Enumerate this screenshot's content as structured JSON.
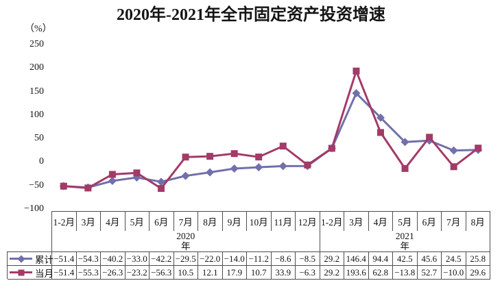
{
  "header": {
    "title": "2020年-2021年全市固定资产投资增速",
    "unit_label": "（%）"
  },
  "colors": {
    "border": "#4d4d4d",
    "text": "#141414",
    "cumulative_series": "#7170AB",
    "monthly_series": "#A33A68"
  },
  "chart_data": {
    "type": "line",
    "title": "2020年-2021年全市固定资产投资增速",
    "ylabel": "（%）",
    "ylim": [
      -100,
      250
    ],
    "y_ticks": [
      250,
      200,
      150,
      100,
      50,
      0,
      -50,
      -100
    ],
    "grid": false,
    "legend_position": "table-left",
    "value_decimals": 1,
    "categories": [
      "1-2月",
      "3月",
      "4月",
      "5月",
      "6月",
      "7月",
      "8月",
      "9月",
      "10月",
      "11月",
      "12月",
      "1-2月",
      "3月",
      "4月",
      "5月",
      "6月",
      "7月",
      "8月"
    ],
    "year_groups": [
      {
        "line1": "2020",
        "line2": "年",
        "span": 11
      },
      {
        "line1": "2021",
        "line2": "年",
        "span": 7
      }
    ],
    "series": [
      {
        "name": "累计",
        "marker": "diamond",
        "color": "#7170AB",
        "values": [
          -51.4,
          -54.3,
          -40.2,
          -33.0,
          -42.2,
          -29.5,
          -22.0,
          -14.0,
          -11.2,
          -8.6,
          -8.5,
          29.2,
          146.4,
          94.4,
          42.5,
          45.6,
          24.5,
          25.8
        ]
      },
      {
        "name": "当月",
        "marker": "square",
        "color": "#A33A68",
        "values": [
          -51.4,
          -55.3,
          -26.3,
          -23.2,
          -56.3,
          10.5,
          12.1,
          17.9,
          10.7,
          33.9,
          -6.3,
          29.2,
          193.6,
          62.8,
          -13.8,
          52.7,
          -10.0,
          29.6
        ]
      }
    ]
  }
}
